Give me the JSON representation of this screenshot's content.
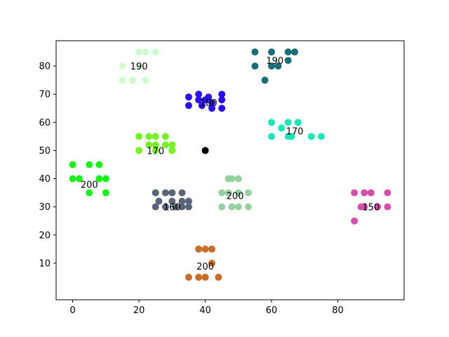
{
  "chart_data": {
    "type": "scatter",
    "title": "",
    "xlabel": "",
    "ylabel": "",
    "xlim": [
      -5,
      100
    ],
    "ylim": [
      -3,
      89
    ],
    "xticks": [
      0,
      20,
      40,
      60,
      80
    ],
    "yticks": [
      10,
      20,
      30,
      40,
      50,
      60,
      70,
      80
    ],
    "grid": false,
    "center_point": {
      "x": 40,
      "y": 50,
      "color": "#000000"
    },
    "series": [
      {
        "color": "#d2fad2",
        "label": "190",
        "label_pos": [
          20,
          80
        ],
        "points": [
          [
            20,
            85
          ],
          [
            22,
            85
          ],
          [
            25,
            85
          ],
          [
            15,
            80
          ],
          [
            20,
            80
          ],
          [
            15,
            75
          ],
          [
            18,
            75
          ],
          [
            22,
            75
          ]
        ]
      },
      {
        "color": "#1a6e78",
        "label": "190",
        "label_pos": [
          61,
          82
        ],
        "points": [
          [
            55,
            85
          ],
          [
            60,
            85
          ],
          [
            65,
            85
          ],
          [
            67,
            85
          ],
          [
            55,
            80
          ],
          [
            60,
            80
          ],
          [
            62,
            80
          ],
          [
            65,
            82
          ],
          [
            58,
            75
          ]
        ]
      },
      {
        "color": "#2a0ff0",
        "label": "180",
        "label_pos": [
          41,
          67
        ],
        "points": [
          [
            35,
            69
          ],
          [
            38,
            70
          ],
          [
            41,
            69
          ],
          [
            45,
            70
          ],
          [
            38,
            68
          ],
          [
            40,
            68
          ],
          [
            42,
            67
          ],
          [
            45,
            68
          ],
          [
            35,
            66
          ],
          [
            39,
            66
          ],
          [
            42,
            65
          ],
          [
            45,
            65
          ]
        ]
      },
      {
        "color": "#1ee6b4",
        "label": "170",
        "label_pos": [
          67,
          57
        ],
        "points": [
          [
            60,
            60
          ],
          [
            65,
            60
          ],
          [
            68,
            60
          ],
          [
            63,
            58
          ],
          [
            60,
            55
          ],
          [
            65,
            55
          ],
          [
            66,
            55
          ],
          [
            72,
            55
          ],
          [
            75,
            55
          ]
        ]
      },
      {
        "color": "#78f028",
        "label": "170",
        "label_pos": [
          25,
          50
        ],
        "points": [
          [
            20,
            55
          ],
          [
            23,
            55
          ],
          [
            25,
            55
          ],
          [
            28,
            55
          ],
          [
            23,
            52
          ],
          [
            25,
            52
          ],
          [
            28,
            52
          ],
          [
            30,
            52
          ],
          [
            20,
            50
          ],
          [
            25,
            50
          ],
          [
            30,
            50
          ]
        ]
      },
      {
        "color": "#1ef01e",
        "label": "200",
        "label_pos": [
          5,
          38
        ],
        "points": [
          [
            0,
            45
          ],
          [
            5,
            45
          ],
          [
            8,
            45
          ],
          [
            0,
            40
          ],
          [
            2,
            40
          ],
          [
            8,
            40
          ],
          [
            10,
            40
          ],
          [
            5,
            35
          ],
          [
            10,
            35
          ]
        ]
      },
      {
        "color": "#5a6478",
        "label": "160",
        "label_pos": [
          30,
          30
        ],
        "points": [
          [
            25,
            35
          ],
          [
            28,
            35
          ],
          [
            30,
            35
          ],
          [
            33,
            35
          ],
          [
            26,
            32
          ],
          [
            30,
            32
          ],
          [
            33,
            32
          ],
          [
            35,
            32
          ],
          [
            25,
            30
          ],
          [
            28,
            30
          ],
          [
            31,
            30
          ],
          [
            33,
            30
          ],
          [
            35,
            30
          ]
        ]
      },
      {
        "color": "#96d2a0",
        "label": "200",
        "label_pos": [
          49,
          34
        ],
        "points": [
          [
            47,
            40
          ],
          [
            48,
            40
          ],
          [
            50,
            40
          ],
          [
            45,
            35
          ],
          [
            47,
            35
          ],
          [
            50,
            35
          ],
          [
            53,
            35
          ],
          [
            45,
            30
          ],
          [
            48,
            30
          ],
          [
            50,
            30
          ],
          [
            53,
            30
          ]
        ]
      },
      {
        "color": "#d250aa",
        "label": "150",
        "label_pos": [
          90,
          30
        ],
        "points": [
          [
            85,
            35
          ],
          [
            88,
            35
          ],
          [
            90,
            35
          ],
          [
            95,
            35
          ],
          [
            87,
            30
          ],
          [
            88,
            30
          ],
          [
            92,
            30
          ],
          [
            95,
            30
          ],
          [
            85,
            25
          ]
        ]
      },
      {
        "color": "#c86e28",
        "label": "200",
        "label_pos": [
          40,
          9
        ],
        "points": [
          [
            38,
            15
          ],
          [
            40,
            15
          ],
          [
            42,
            15
          ],
          [
            42,
            10
          ],
          [
            35,
            5
          ],
          [
            38,
            5
          ],
          [
            40,
            5
          ],
          [
            44,
            5
          ]
        ]
      }
    ]
  }
}
